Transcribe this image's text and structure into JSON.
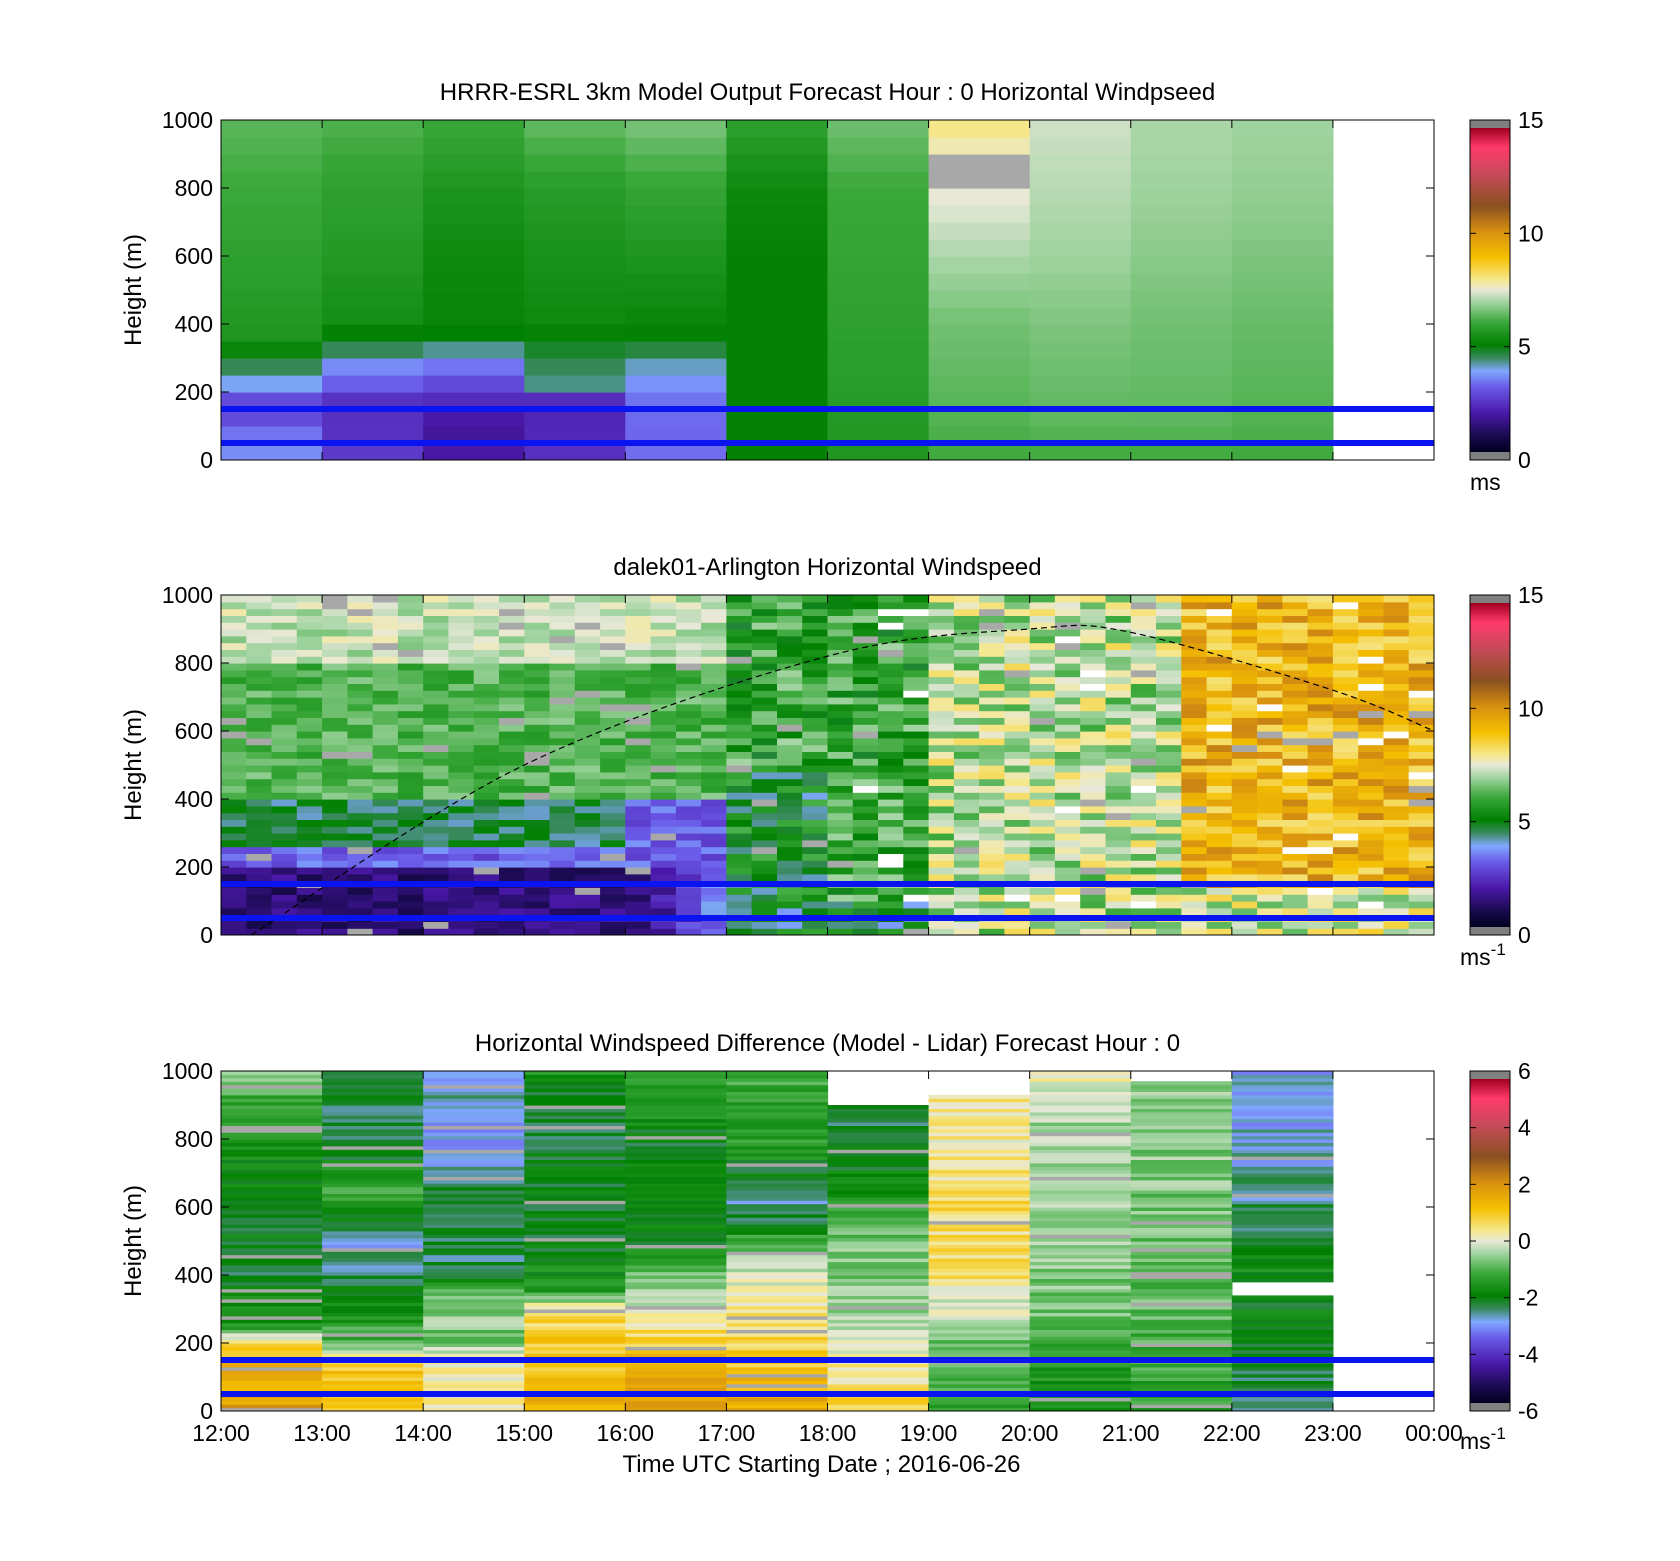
{
  "chart_data": [
    {
      "type": "heatmap",
      "title": "HRRR-ESRL 3km Model Output   Forecast Hour : 0 Horizontal Windpseed",
      "ylabel": "Height (m)",
      "xlabel": "",
      "ylim": [
        0,
        1000
      ],
      "xlim": [
        "12:00",
        "00:00"
      ],
      "yticks": [
        "0",
        "200",
        "400",
        "600",
        "800",
        "1000"
      ],
      "xticks": [
        "12:00",
        "13:00",
        "14:00",
        "15:00",
        "16:00",
        "17:00",
        "18:00",
        "19:00",
        "20:00",
        "21:00",
        "22:00",
        "23:00",
        "00:00"
      ],
      "show_xtick_labels": false,
      "colorbar": {
        "ticks": [
          "0",
          "5",
          "10",
          "15"
        ],
        "range": [
          0,
          15
        ],
        "unit": "ms",
        "unit_sup": ""
      },
      "reference_lines_m": [
        150,
        50
      ],
      "columns": [
        {
          "start": "12:00",
          "profile": [
            [
              0,
              4.0
            ],
            [
              50,
              3.0
            ],
            [
              100,
              3.5
            ],
            [
              150,
              2.0
            ],
            [
              200,
              3.5
            ],
            [
              260,
              4.2
            ],
            [
              350,
              5.5
            ],
            [
              600,
              5.8
            ],
            [
              800,
              6.0
            ],
            [
              1000,
              6.3
            ]
          ]
        },
        {
          "start": "13:00",
          "profile": [
            [
              0,
              2.5
            ],
            [
              100,
              2.2
            ],
            [
              180,
              2.3
            ],
            [
              220,
              3.0
            ],
            [
              280,
              3.5
            ],
            [
              330,
              4.5
            ],
            [
              400,
              5.3
            ],
            [
              600,
              5.6
            ],
            [
              800,
              5.8
            ],
            [
              1000,
              6.2
            ]
          ]
        },
        {
          "start": "14:00",
          "profile": [
            [
              0,
              1.8
            ],
            [
              100,
              1.6
            ],
            [
              180,
              2.2
            ],
            [
              250,
              3.0
            ],
            [
              300,
              3.5
            ],
            [
              350,
              4.8
            ],
            [
              400,
              5.1
            ],
            [
              600,
              5.2
            ],
            [
              800,
              5.5
            ],
            [
              1000,
              6.0
            ]
          ]
        },
        {
          "start": "15:00",
          "profile": [
            [
              0,
              2.3
            ],
            [
              100,
              2.0
            ],
            [
              180,
              2.2
            ],
            [
              220,
              4.2
            ],
            [
              300,
              4.5
            ],
            [
              400,
              5.2
            ],
            [
              600,
              5.4
            ],
            [
              800,
              5.7
            ],
            [
              1000,
              6.4
            ]
          ]
        },
        {
          "start": "16:00",
          "profile": [
            [
              0,
              3.2
            ],
            [
              100,
              3.1
            ],
            [
              200,
              3.3
            ],
            [
              300,
              4.2
            ],
            [
              350,
              4.9
            ],
            [
              400,
              5.1
            ],
            [
              600,
              5.5
            ],
            [
              800,
              5.9
            ],
            [
              1000,
              6.6
            ]
          ]
        },
        {
          "start": "17:00",
          "profile": [
            [
              0,
              5.0
            ],
            [
              100,
              5.0
            ],
            [
              400,
              5.0
            ],
            [
              600,
              5.0
            ],
            [
              800,
              5.2
            ],
            [
              1000,
              5.8
            ]
          ]
        },
        {
          "start": "18:00",
          "profile": [
            [
              0,
              5.5
            ],
            [
              100,
              5.6
            ],
            [
              400,
              5.8
            ],
            [
              600,
              5.9
            ],
            [
              800,
              6.0
            ],
            [
              1000,
              6.5
            ]
          ]
        },
        {
          "start": "19:00",
          "profile": [
            [
              0,
              6.0
            ],
            [
              100,
              6.2
            ],
            [
              400,
              6.5
            ],
            [
              600,
              7.0
            ],
            [
              700,
              7.3
            ],
            [
              800,
              7.6
            ],
            [
              850,
              7.5
            ],
            [
              900,
              7.5
            ],
            [
              950,
              8.0
            ],
            [
              1000,
              8.0
            ]
          ]
        },
        {
          "start": "20:00",
          "profile": [
            [
              0,
              6.0
            ],
            [
              100,
              6.3
            ],
            [
              400,
              6.6
            ],
            [
              600,
              6.9
            ],
            [
              800,
              7.1
            ],
            [
              1000,
              7.3
            ]
          ]
        },
        {
          "start": "21:00",
          "profile": [
            [
              0,
              6.0
            ],
            [
              100,
              6.3
            ],
            [
              400,
              6.5
            ],
            [
              600,
              6.7
            ],
            [
              800,
              6.9
            ],
            [
              1000,
              7.0
            ]
          ]
        },
        {
          "start": "22:00",
          "profile": [
            [
              0,
              6.0
            ],
            [
              100,
              6.2
            ],
            [
              400,
              6.4
            ],
            [
              600,
              6.6
            ],
            [
              800,
              6.8
            ],
            [
              1000,
              6.9
            ]
          ]
        }
      ]
    },
    {
      "type": "heatmap",
      "title": "dalek01-Arlington  Horizontal Windspeed",
      "ylabel": "Height (m)",
      "xlabel": "",
      "ylim": [
        0,
        1000
      ],
      "xlim": [
        "12:00",
        "00:00"
      ],
      "yticks": [
        "0",
        "200",
        "400",
        "600",
        "800",
        "1000"
      ],
      "xticks": [
        "12:00",
        "13:00",
        "14:00",
        "15:00",
        "16:00",
        "17:00",
        "18:00",
        "19:00",
        "20:00",
        "21:00",
        "22:00",
        "23:00",
        "00:00"
      ],
      "show_xtick_labels": false,
      "colorbar": {
        "ticks": [
          "0",
          "5",
          "10",
          "15"
        ],
        "range": [
          0,
          15
        ],
        "unit": "ms",
        "unit_sup": "-1"
      },
      "reference_lines_m": [
        150,
        50
      ],
      "boundary_layer_curve": {
        "style": "dashed",
        "points": [
          [
            "12:18",
            0
          ],
          [
            "15:00",
            500
          ],
          [
            "18:00",
            820
          ],
          [
            "20:00",
            900
          ],
          [
            "21:00",
            890
          ],
          [
            "23:00",
            720
          ],
          [
            "24:00",
            600
          ]
        ]
      },
      "regimes": [
        {
          "from": "12:00",
          "to": "17:00",
          "description_values": {
            "below_200m": 1.5,
            "200_400m": 4.5,
            "400_800m": 6.2,
            "above_800m": 7.2
          }
        },
        {
          "from": "17:00",
          "to": "19:00",
          "description_values": {
            "below_100m": 4.8,
            "100_1000m": 5.8
          }
        },
        {
          "from": "19:00",
          "to": "21:30",
          "description_values": {
            "0_1000m": 7.2
          }
        },
        {
          "from": "21:30",
          "to": "24:00",
          "description_values": {
            "below_150m": 7.5,
            "150_1000m": 9.3
          }
        }
      ]
    },
    {
      "type": "heatmap",
      "title": "Horizontal Windspeed Difference (Model - Lidar) Forecast Hour : 0",
      "ylabel": "Height (m)",
      "xlabel": "Time UTC  Starting Date ; 2016-06-26",
      "ylim": [
        0,
        1000
      ],
      "xlim": [
        "12:00",
        "00:00"
      ],
      "yticks": [
        "0",
        "200",
        "400",
        "600",
        "800",
        "1000"
      ],
      "xticks": [
        "12:00",
        "13:00",
        "14:00",
        "15:00",
        "16:00",
        "17:00",
        "18:00",
        "19:00",
        "20:00",
        "21:00",
        "22:00",
        "23:00",
        "00:00"
      ],
      "show_xtick_labels": true,
      "colorbar": {
        "ticks": [
          "-6",
          "-4",
          "-2",
          "0",
          "2",
          "4",
          "6"
        ],
        "range": [
          -6,
          6
        ],
        "unit": "ms",
        "unit_sup": "-1"
      },
      "reference_lines_m": [
        150,
        50
      ],
      "columns": [
        {
          "start": "12:00",
          "top_m": 1000,
          "profile": [
            [
              0,
              2.0
            ],
            [
              100,
              1.5
            ],
            [
              200,
              0.8
            ],
            [
              250,
              -1.5
            ],
            [
              400,
              -2.2
            ],
            [
              600,
              -2.0
            ],
            [
              800,
              -1.8
            ],
            [
              950,
              -1.0
            ],
            [
              1000,
              -0.5
            ]
          ]
        },
        {
          "start": "13:00",
          "top_m": 1000,
          "profile": [
            [
              0,
              1.2
            ],
            [
              150,
              1.0
            ],
            [
              200,
              -1.0
            ],
            [
              400,
              -2.5
            ],
            [
              500,
              -2.8
            ],
            [
              650,
              -1.2
            ],
            [
              800,
              -2.5
            ],
            [
              1000,
              -2.2
            ]
          ]
        },
        {
          "start": "14:00",
          "top_m": 1000,
          "profile": [
            [
              0,
              0.2
            ],
            [
              150,
              0.3
            ],
            [
              200,
              -0.8
            ],
            [
              330,
              -0.5
            ],
            [
              400,
              -2.5
            ],
            [
              600,
              -2.2
            ],
            [
              800,
              -3.0
            ],
            [
              1000,
              -2.8
            ]
          ]
        },
        {
          "start": "15:00",
          "top_m": 1000,
          "profile": [
            [
              0,
              1.5
            ],
            [
              200,
              1.0
            ],
            [
              300,
              0.6
            ],
            [
              350,
              -1.5
            ],
            [
              500,
              -2.2
            ],
            [
              700,
              -2.0
            ],
            [
              900,
              -2.5
            ],
            [
              1000,
              -1.5
            ]
          ]
        },
        {
          "start": "16:00",
          "top_m": 1000,
          "profile": [
            [
              0,
              2.2
            ],
            [
              150,
              1.5
            ],
            [
              250,
              0.4
            ],
            [
              400,
              -0.8
            ],
            [
              500,
              -2.0
            ],
            [
              800,
              -2.2
            ],
            [
              1000,
              -1.0
            ]
          ]
        },
        {
          "start": "17:00",
          "top_m": 1000,
          "profile": [
            [
              0,
              1.8
            ],
            [
              150,
              1.0
            ],
            [
              300,
              0.3
            ],
            [
              450,
              -0.5
            ],
            [
              600,
              -2.8
            ],
            [
              800,
              -1.5
            ],
            [
              1000,
              -1.2
            ]
          ]
        },
        {
          "start": "18:00",
          "top_m": 900,
          "profile": [
            [
              0,
              1.0
            ],
            [
              150,
              0.2
            ],
            [
              300,
              -0.6
            ],
            [
              500,
              -0.8
            ],
            [
              700,
              -2.0
            ],
            [
              900,
              -2.5
            ]
          ]
        },
        {
          "start": "19:00",
          "top_m": 930,
          "profile": [
            [
              0,
              -1.2
            ],
            [
              150,
              -1.0
            ],
            [
              250,
              -0.5
            ],
            [
              400,
              0.5
            ],
            [
              600,
              0.6
            ],
            [
              800,
              0.3
            ],
            [
              930,
              0.5
            ]
          ]
        },
        {
          "start": "20:00",
          "top_m": 1000,
          "profile": [
            [
              0,
              -1.8
            ],
            [
              150,
              -1.5
            ],
            [
              300,
              -0.8
            ],
            [
              500,
              -0.5
            ],
            [
              700,
              -0.6
            ],
            [
              900,
              -0.4
            ],
            [
              1000,
              0.2
            ]
          ]
        },
        {
          "start": "21:00",
          "top_m": 970,
          "profile": [
            [
              0,
              -1.5
            ],
            [
              150,
              -1.2
            ],
            [
              300,
              -1.0
            ],
            [
              500,
              -0.8
            ],
            [
              700,
              -0.7
            ],
            [
              900,
              -0.5
            ],
            [
              970,
              -0.5
            ]
          ]
        },
        {
          "start": "22:00",
          "top_m": 1000,
          "gap_m": [
            380,
            340
          ],
          "profile": [
            [
              0,
              -2.5
            ],
            [
              150,
              -2.2
            ],
            [
              340,
              -2.0
            ],
            [
              380,
              -1.8
            ],
            [
              600,
              -2.5
            ],
            [
              800,
              -3.0
            ],
            [
              1000,
              -3.0
            ]
          ]
        }
      ]
    }
  ]
}
